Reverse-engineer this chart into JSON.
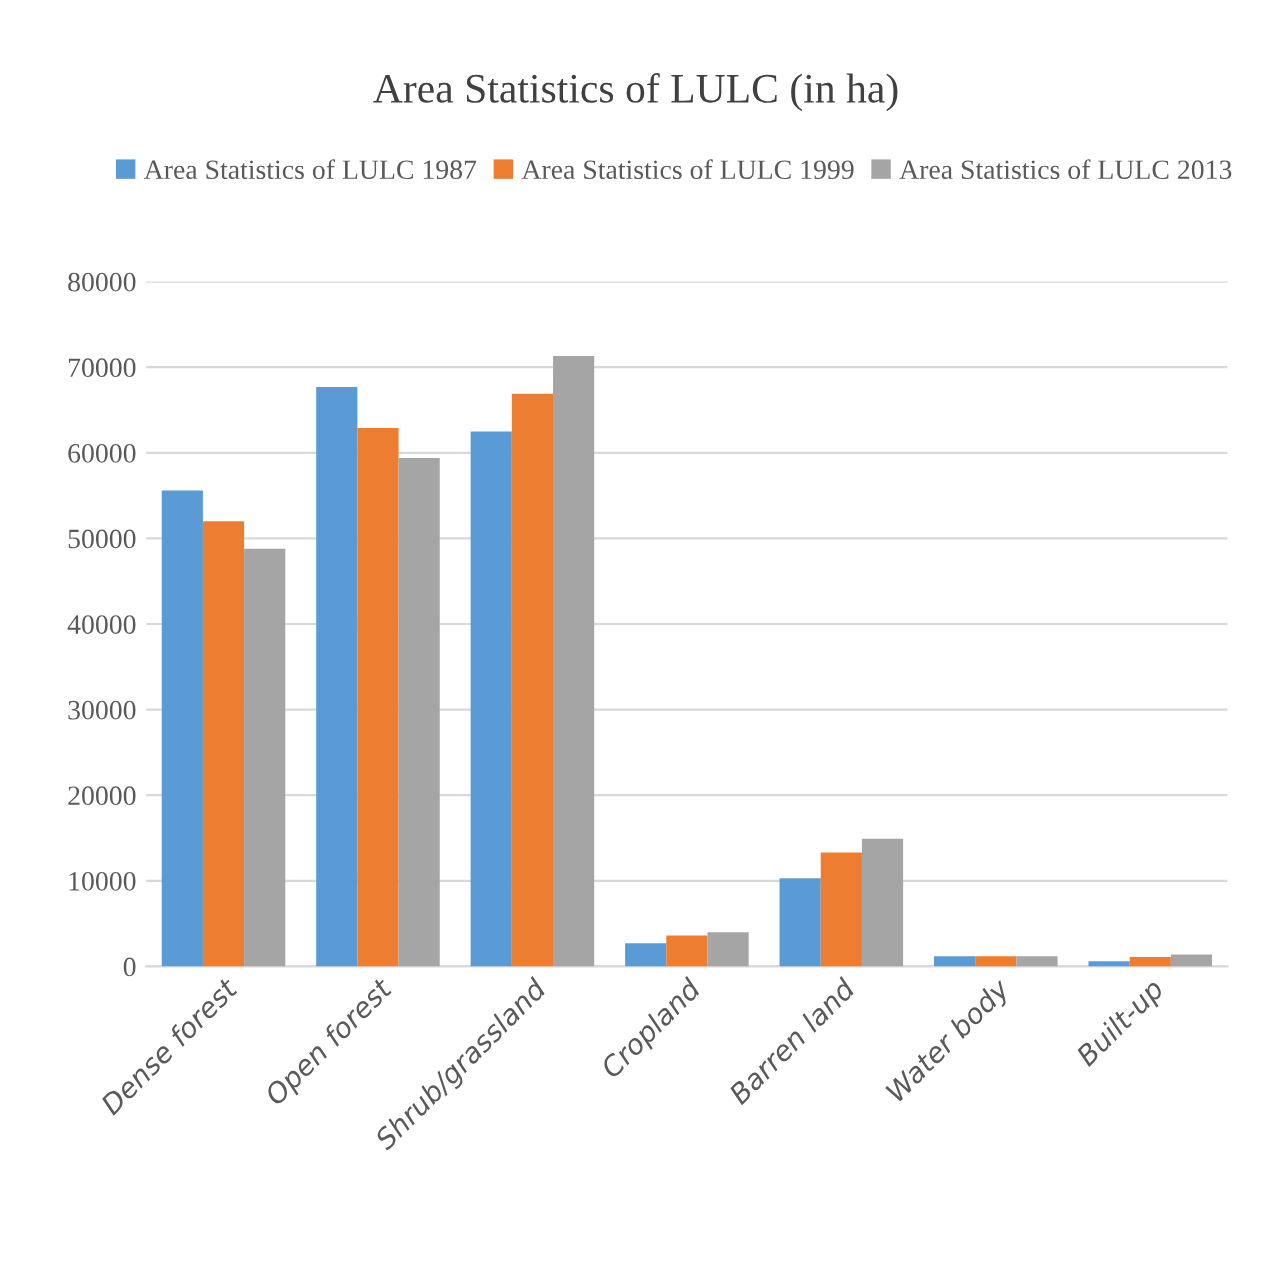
{
  "chart_data": {
    "type": "bar",
    "title": "Area Statistics of LULC (in ha)",
    "categories": [
      "Dense forest",
      "Open forest",
      "Shrub/grassland",
      "Cropland",
      "Barren land",
      "Water body",
      "Built-up"
    ],
    "series": [
      {
        "name": "Area Statistics of LULC 1987",
        "color": "#5b9bd5",
        "values": [
          55600,
          67700,
          62500,
          2700,
          10300,
          1200,
          600
        ]
      },
      {
        "name": "Area Statistics of LULC 1999",
        "color": "#ed7d31",
        "values": [
          52000,
          62900,
          66900,
          3600,
          13300,
          1200,
          1100
        ]
      },
      {
        "name": "Area Statistics of LULC 2013",
        "color": "#a5a5a5",
        "values": [
          48800,
          59400,
          71300,
          4000,
          14900,
          1200,
          1400
        ]
      }
    ],
    "ylim": [
      0,
      80000
    ],
    "yticks": [
      0,
      10000,
      20000,
      30000,
      40000,
      50000,
      60000,
      70000,
      80000
    ],
    "grid": "y",
    "legend": "top"
  }
}
